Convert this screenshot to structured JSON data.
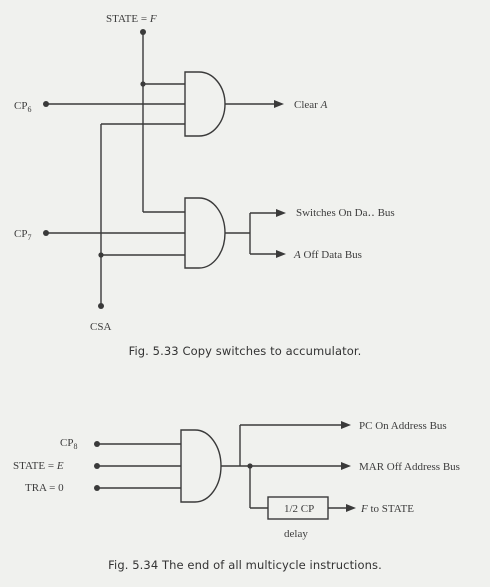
{
  "fig533": {
    "inputs": {
      "state_prefix": "STATE = ",
      "state_value": "F",
      "cp6_base": "CP",
      "cp6_sub": "6",
      "cp7_base": "CP",
      "cp7_sub": "7",
      "csa": "CSA"
    },
    "outputs": {
      "clear_prefix": "Clear ",
      "clear_var": "A",
      "switches_on_data_bus": "Switches On Da․․ Bus",
      "a_off_var": "A",
      "a_off_rest": " Off Data Bus"
    },
    "caption": "Fig.  5.33  Copy switches to accumulator."
  },
  "fig534": {
    "inputs": {
      "cp8_base": "CP",
      "cp8_sub": "8",
      "state_prefix": "STATE = ",
      "state_value": "E",
      "tra": "TRA =  0"
    },
    "outputs": {
      "pc_on_address_bus": "PC On Address Bus",
      "mar_off_address_bus": "MAR Off Address Bus",
      "delay_box": "1/2 CP",
      "delay_label": "delay",
      "f_var": "F",
      "f_rest": " to STATE"
    },
    "caption": "Fig.  5.34  The end of all multicycle instructions."
  }
}
